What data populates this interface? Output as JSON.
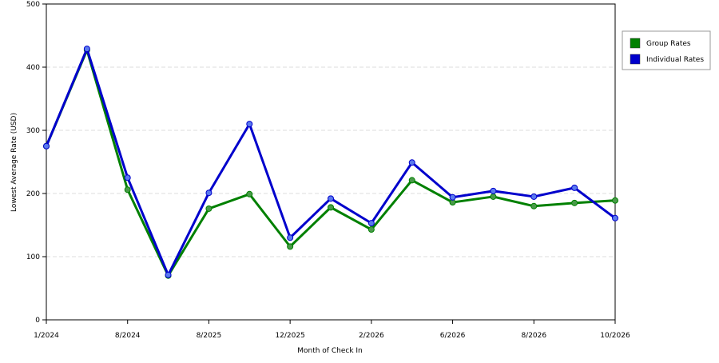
{
  "chart_data": {
    "type": "line",
    "x_label": "Month of Check In",
    "y_label": "Lowest Average Rate (USD)",
    "categories": [
      "1/2024",
      null,
      "8/2024",
      null,
      "8/2025",
      null,
      "12/2025",
      null,
      "2/2026",
      null,
      "6/2026",
      null,
      "8/2026",
      null,
      "10/2026"
    ],
    "series": [
      {
        "name": "Group Rates",
        "color": "#008000",
        "values": [
          275,
          427,
          206,
          70,
          176,
          199,
          116,
          178,
          143,
          221,
          186,
          195,
          180,
          185,
          189
        ]
      },
      {
        "name": "Individual Rates",
        "color": "#0000cc",
        "values": [
          275,
          429,
          225,
          71,
          201,
          310,
          130,
          192,
          153,
          249,
          194,
          204,
          195,
          209,
          161
        ]
      }
    ],
    "ylim": [
      0,
      500
    ],
    "yticks": [
      0,
      100,
      200,
      300,
      400,
      500
    ],
    "grid": true,
    "legend": "right"
  }
}
